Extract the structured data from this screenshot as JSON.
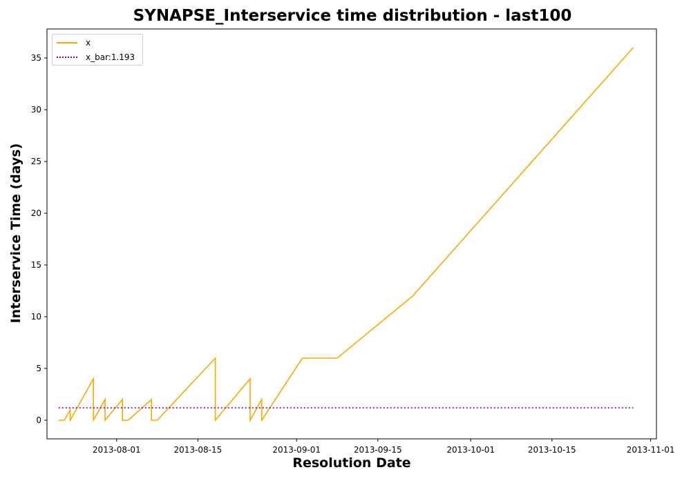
{
  "chart_data": {
    "type": "line",
    "title": "SYNAPSE_Interservice time distribution - last100",
    "xlabel": "Resolution Date",
    "ylabel": "Interservice Time (days)",
    "xlim": [
      "2013-07-20",
      "2013-11-02"
    ],
    "ylim": [
      -1.8,
      37.8
    ],
    "xticks": [
      "2013-08-01",
      "2013-08-15",
      "2013-09-01",
      "2013-09-15",
      "2013-10-01",
      "2013-10-15",
      "2013-11-01"
    ],
    "yticks": [
      0,
      5,
      10,
      15,
      20,
      25,
      30,
      35
    ],
    "legend_position": "upper-left",
    "grid": false,
    "series": [
      {
        "name": "x",
        "style": "solid",
        "color": "#ffa500",
        "points": [
          [
            "2013-07-22",
            0
          ],
          [
            "2013-07-23",
            0
          ],
          [
            "2013-07-24",
            1
          ],
          [
            "2013-07-24",
            0
          ],
          [
            "2013-07-28",
            4
          ],
          [
            "2013-07-28",
            0
          ],
          [
            "2013-07-30",
            2
          ],
          [
            "2013-07-30",
            0
          ],
          [
            "2013-08-02",
            2
          ],
          [
            "2013-08-02",
            0
          ],
          [
            "2013-08-03",
            0
          ],
          [
            "2013-08-07",
            2
          ],
          [
            "2013-08-07",
            0
          ],
          [
            "2013-08-08",
            0
          ],
          [
            "2013-08-18",
            6
          ],
          [
            "2013-08-18",
            0
          ],
          [
            "2013-08-24",
            4
          ],
          [
            "2013-08-24",
            0
          ],
          [
            "2013-08-26",
            2
          ],
          [
            "2013-08-26",
            0
          ],
          [
            "2013-09-02",
            6
          ],
          [
            "2013-09-08",
            6
          ],
          [
            "2013-09-21",
            12
          ],
          [
            "2013-10-29",
            36
          ]
        ]
      },
      {
        "name": "x_bar:1.193",
        "style": "dotted",
        "color": "#800080",
        "points": [
          [
            "2013-07-22",
            1.193
          ],
          [
            "2013-10-29",
            1.193
          ]
        ]
      }
    ]
  }
}
